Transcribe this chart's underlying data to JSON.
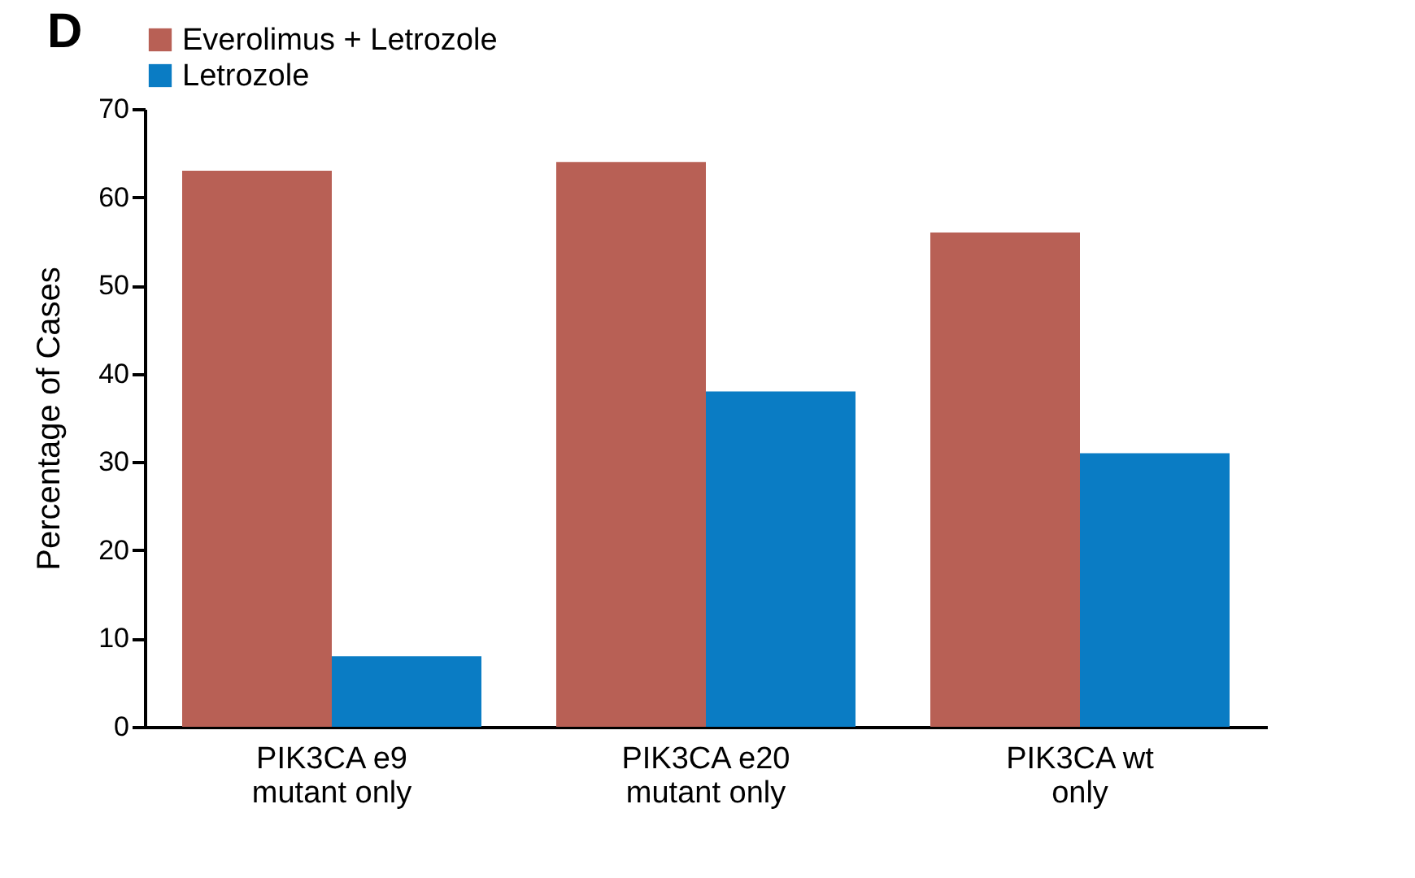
{
  "chart_data": {
    "type": "bar",
    "title": "D",
    "ylabel": "Percentage of Cases",
    "categories": [
      "PIK3CA e9\nmutant only",
      "PIK3CA e20\nmutant only",
      "PIK3CA wt\nonly"
    ],
    "series": [
      {
        "name": "Everolimus + Letrozole",
        "color": "#b86055",
        "values": [
          63,
          64,
          56
        ]
      },
      {
        "name": "Letrozole",
        "color": "#0a7cc4",
        "values": [
          8,
          38,
          31
        ]
      }
    ],
    "ylim": [
      0,
      70
    ],
    "yticks": [
      0,
      10,
      20,
      30,
      40,
      50,
      60,
      70
    ],
    "grid": false,
    "legend": "top"
  }
}
